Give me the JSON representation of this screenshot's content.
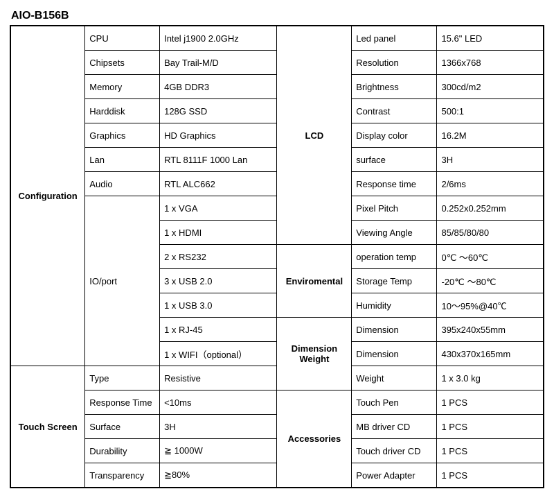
{
  "title": "AIO-B156B",
  "sections": {
    "configuration": "Configuration",
    "touchscreen": "Touch Screen",
    "lcd": "LCD",
    "enviromental": "Enviromental",
    "dimension_weight": "Dimension Weight",
    "accessories": "Accessories"
  },
  "left": {
    "cpu_l": "CPU",
    "cpu_v": "Intel j1900 2.0GHz",
    "chipsets_l": "Chipsets",
    "chipsets_v": "Bay Trail-M/D",
    "memory_l": "Memory",
    "memory_v": "4GB DDR3",
    "harddisk_l": "Harddisk",
    "harddisk_v": "128G SSD",
    "graphics_l": "Graphics",
    "graphics_v": "HD Graphics",
    "lan_l": "Lan",
    "lan_v": "RTL 8111F 1000 Lan",
    "audio_l": "Audio",
    "audio_v": "RTL ALC662",
    "ioport_l": "IO/port",
    "io_vga": "1 x VGA",
    "io_hdmi": "1 x HDMI",
    "io_rs232": "2 x RS232",
    "io_usb20": "3 x USB 2.0",
    "io_usb30": "1 x USB 3.0",
    "io_rj45": "1 x RJ-45",
    "io_wifi": "1 x WIFI（optional）",
    "type_l": "Type",
    "type_v": "Resistive",
    "resp_l": "Response Time",
    "resp_v": "<10ms",
    "surface_l": "Surface",
    "surface_v": "3H",
    "dur_l": "Durability",
    "dur_v": "≧ 1000W",
    "trans_l": "Transparency",
    "trans_v": "≧80%"
  },
  "right": {
    "ledpanel_l": "Led panel",
    "ledpanel_v": "15.6\" LED",
    "res_l": "Resolution",
    "res_v": "1366x768",
    "bright_l": "Brightness",
    "bright_v": "300cd/m2",
    "contrast_l": "Contrast",
    "contrast_v": " 500:1",
    "dispcolor_l": "Display color",
    "dispcolor_v": "16.2M",
    "surface_l": "surface",
    "surface_v": "3H",
    "resptime_l": "Response time",
    "resptime_v": "2/6ms",
    "pixel_l": "Pixel Pitch",
    "pixel_v": "0.252x0.252mm",
    "view_l": "Viewing Angle",
    "view_v": "85/85/80/80",
    "optemp_l": "operation temp",
    "optemp_v": "   0℃ ～60℃",
    "sttemp_l": "Storage Temp",
    "sttemp_v": "  -20℃ ～80℃",
    "hum_l": "Humidity",
    "hum_v": "10～95%@40℃",
    "dim1_l": "Dimension",
    "dim1_v": "395x240x55mm",
    "dim2_l": "Dimension",
    "dim2_v": "430x370x165mm",
    "weight_l": "Weight",
    "weight_v": "1 x 3.0 kg",
    "touchpen_l": "Touch Pen",
    "touchpen_v": "1 PCS",
    "mbcd_l": "MB driver CD",
    "mbcd_v": "1 PCS",
    "tdcd_l": "Touch driver CD",
    "tdcd_v": "1 PCS",
    "power_l": "Power Adapter",
    "power_v": "1 PCS"
  },
  "style": {
    "border_color": "#000000",
    "background_color": "#ffffff",
    "text_color": "#000000",
    "title_fontsize": 16,
    "cell_fontsize": 13,
    "font_family": "Arial"
  }
}
